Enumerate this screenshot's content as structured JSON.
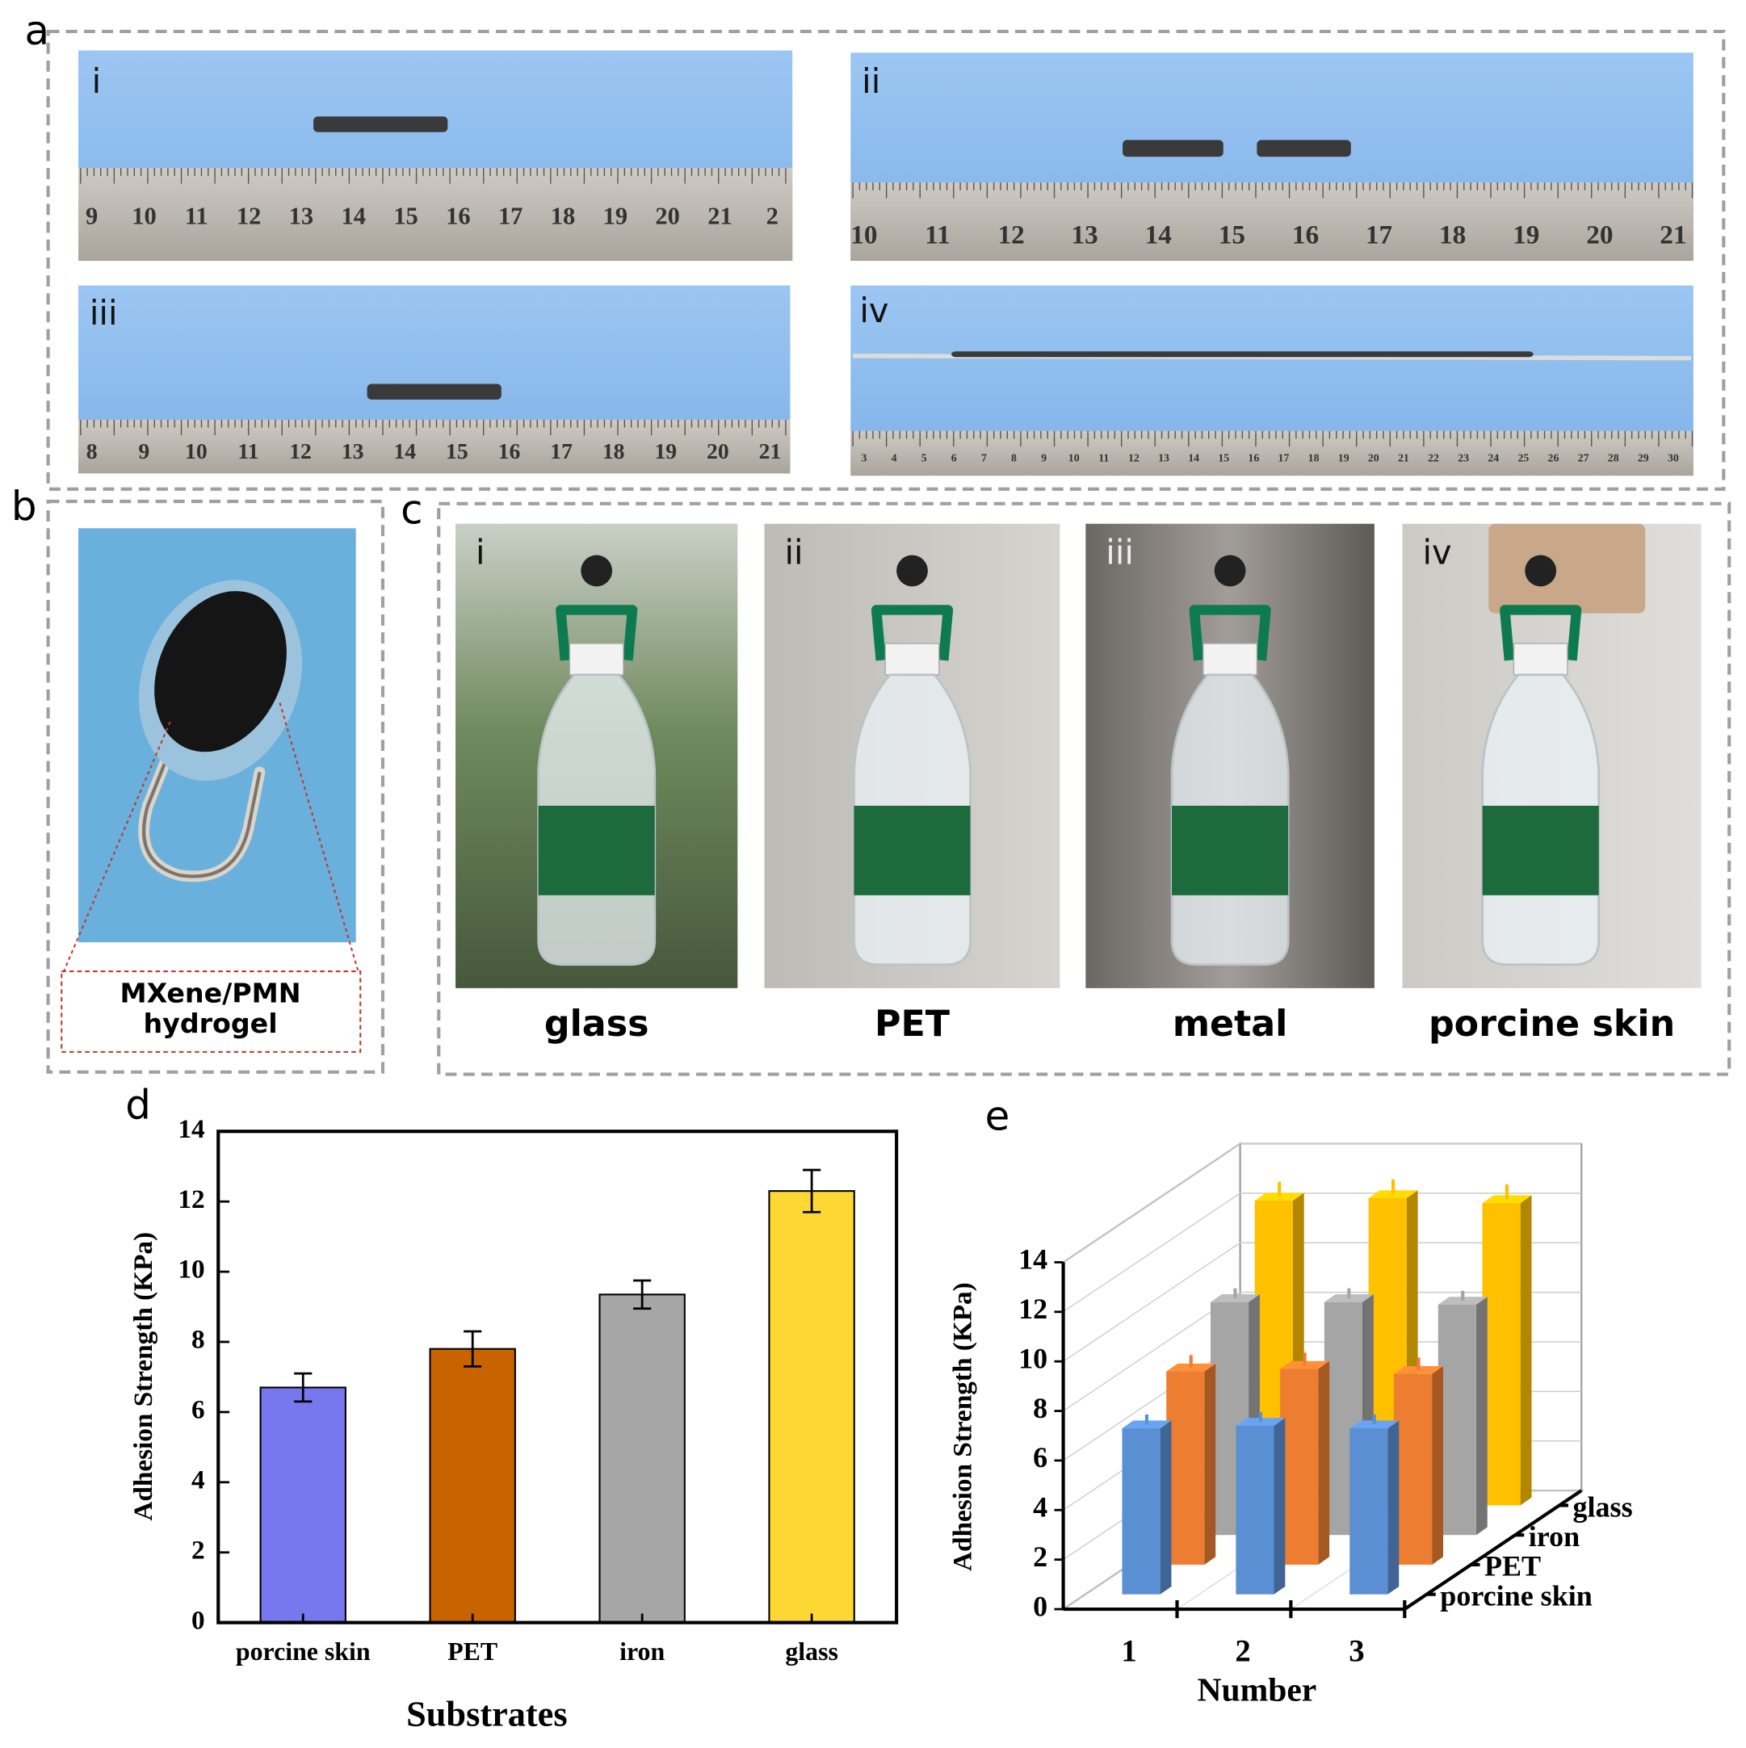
{
  "panels": {
    "a": {
      "letter": "a",
      "photos": [
        {
          "label": "i",
          "ruler": [
            "9",
            "10",
            "11",
            "12",
            "13",
            "14",
            "15",
            "16",
            "17",
            "18",
            "19",
            "20",
            "21",
            "2"
          ]
        },
        {
          "label": "ii",
          "ruler": [
            "10",
            "11",
            "12",
            "13",
            "14",
            "15",
            "16",
            "17",
            "18",
            "19",
            "20",
            "21"
          ]
        },
        {
          "label": "iii",
          "ruler": [
            "8",
            "9",
            "10",
            "11",
            "12",
            "13",
            "14",
            "15",
            "16",
            "17",
            "18",
            "19",
            "20",
            "21"
          ]
        },
        {
          "label": "iv",
          "ruler": [
            "3",
            "4",
            "5",
            "6",
            "7",
            "8",
            "9",
            "10",
            "11",
            "12",
            "13",
            "14",
            "15",
            "16",
            "17",
            "18",
            "19",
            "20",
            "21",
            "22",
            "23",
            "24",
            "25",
            "26",
            "27",
            "28",
            "29",
            "30"
          ]
        }
      ]
    },
    "b": {
      "letter": "b",
      "caption": [
        "MXene/PMN",
        "hydrogel"
      ]
    },
    "c": {
      "letter": "c",
      "photos": [
        {
          "label": "i",
          "substrate": "glass"
        },
        {
          "label": "ii",
          "substrate": "PET"
        },
        {
          "label": "iii",
          "substrate": "metal"
        },
        {
          "label": "iv",
          "substrate": "porcine skin"
        }
      ]
    }
  },
  "chart_data": [
    {
      "type": "bar",
      "panel_label": "d",
      "categories": [
        "porcine skin",
        "PET",
        "iron",
        "glass"
      ],
      "values": [
        6.7,
        7.8,
        9.35,
        12.3
      ],
      "errors": [
        0.4,
        0.5,
        0.4,
        0.6
      ],
      "colors": [
        "#7777ee",
        "#c86400",
        "#a6a6a6",
        "#fdd835"
      ],
      "xlabel": "Substrates",
      "ylabel": "Adhesion Strength (KPa)",
      "ylim": [
        0,
        14
      ],
      "yticks": [
        0,
        2,
        4,
        6,
        8,
        10,
        12,
        14
      ]
    },
    {
      "type": "bar3d",
      "panel_label": "e",
      "categories": [
        "1",
        "2",
        "3"
      ],
      "series": [
        {
          "name": "porcine skin",
          "color": "#5b8fd4",
          "values": [
            6.7,
            6.8,
            6.7
          ],
          "errors": [
            0.4,
            0.4,
            0.4
          ]
        },
        {
          "name": "PET",
          "color": "#ed7d31",
          "values": [
            7.8,
            7.9,
            7.7
          ],
          "errors": [
            0.5,
            0.5,
            0.5
          ]
        },
        {
          "name": "iron",
          "color": "#a5a5a5",
          "values": [
            9.4,
            9.4,
            9.3
          ],
          "errors": [
            0.4,
            0.4,
            0.4
          ]
        },
        {
          "name": "glass",
          "color": "#ffc000",
          "values": [
            12.3,
            12.4,
            12.2
          ],
          "errors": [
            0.6,
            0.6,
            0.6
          ]
        }
      ],
      "xlabel": "Number",
      "ylabel": "Adhesion Strength (KPa)",
      "ylim": [
        0,
        14
      ],
      "yticks": [
        0,
        2,
        4,
        6,
        8,
        10,
        12,
        14
      ],
      "grid": true
    }
  ]
}
